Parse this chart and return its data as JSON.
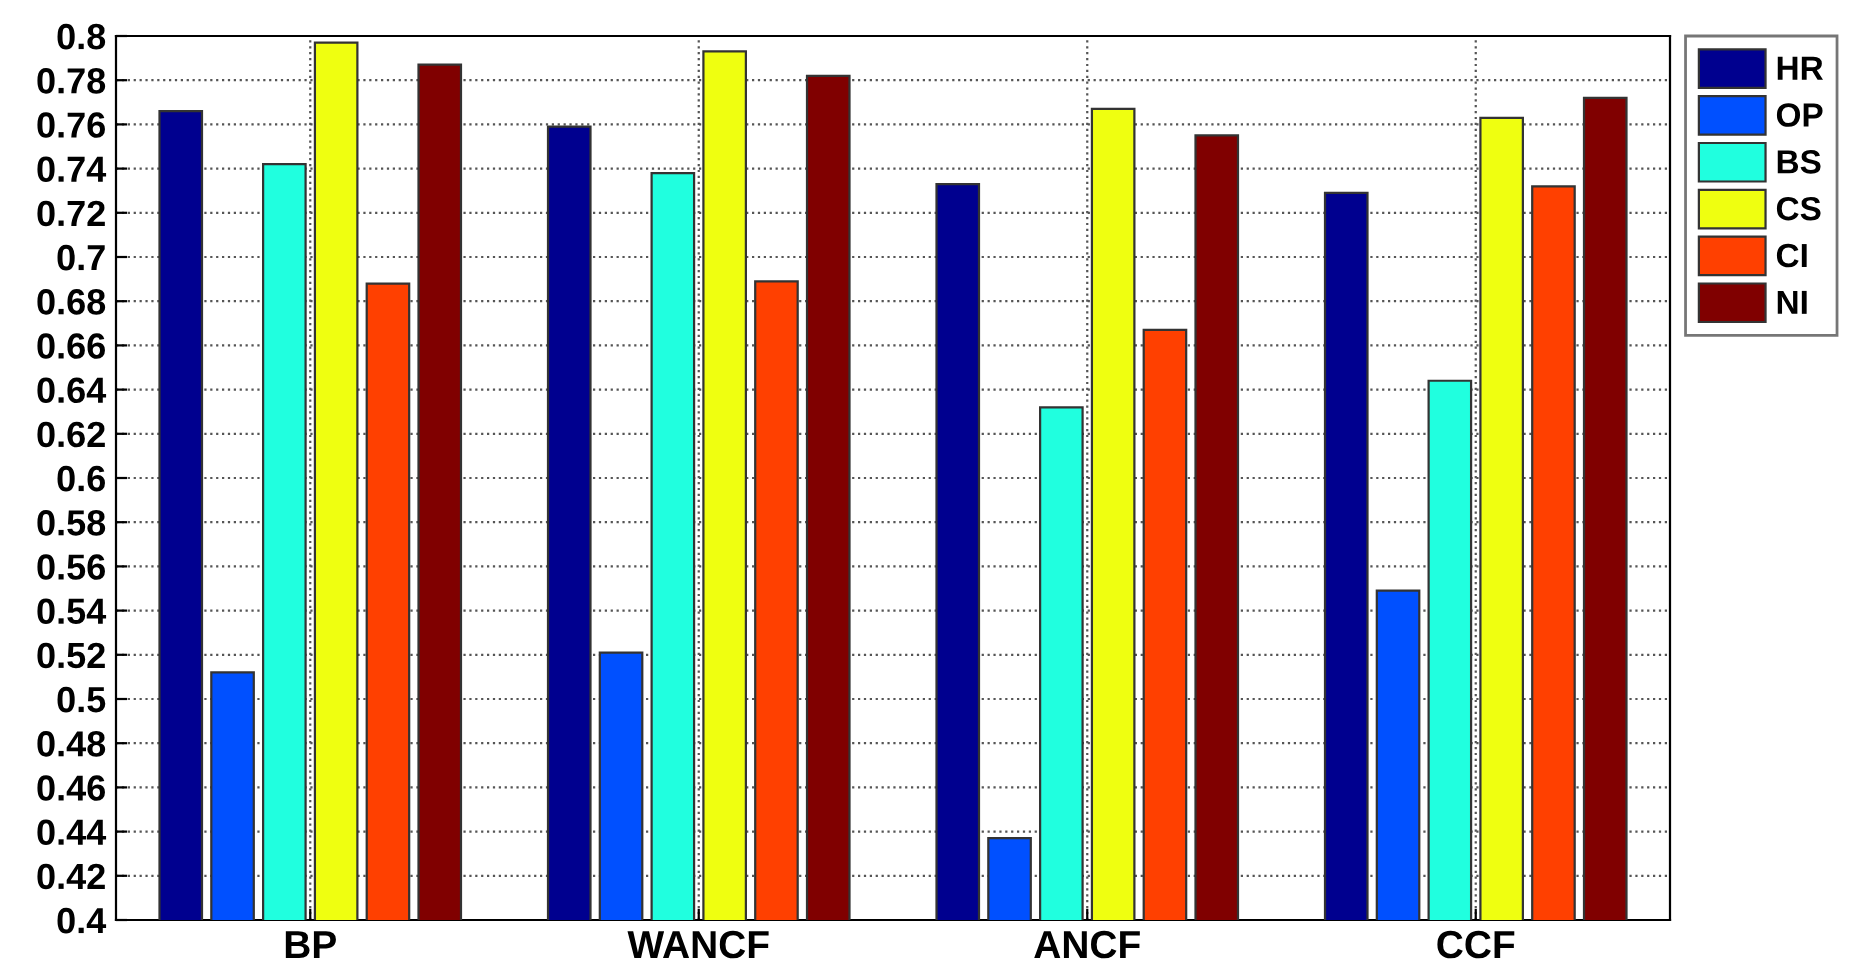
{
  "chart_data": {
    "type": "bar",
    "categories": [
      "BP",
      "WANCF",
      "ANCF",
      "CCF"
    ],
    "series": [
      {
        "name": "HR",
        "color": "#00008f",
        "values": [
          0.766,
          0.759,
          0.733,
          0.729
        ]
      },
      {
        "name": "OP",
        "color": "#0050ff",
        "values": [
          0.512,
          0.521,
          0.437,
          0.549
        ]
      },
      {
        "name": "BS",
        "color": "#20ffdf",
        "values": [
          0.742,
          0.738,
          0.632,
          0.644
        ]
      },
      {
        "name": "CS",
        "color": "#efff10",
        "values": [
          0.797,
          0.793,
          0.767,
          0.763
        ]
      },
      {
        "name": "CI",
        "color": "#ff4000",
        "values": [
          0.688,
          0.689,
          0.667,
          0.732
        ]
      },
      {
        "name": "NI",
        "color": "#800000",
        "values": [
          0.787,
          0.782,
          0.755,
          0.772
        ]
      }
    ],
    "ylim": [
      0.4,
      0.8
    ],
    "yticks": [
      0.4,
      0.42,
      0.44,
      0.46,
      0.48,
      0.5,
      0.52,
      0.54,
      0.56,
      0.58,
      0.6,
      0.62,
      0.64,
      0.66,
      0.68,
      0.7,
      0.72,
      0.74,
      0.76,
      0.78,
      0.8
    ],
    "grid": true,
    "legend": "top right"
  }
}
